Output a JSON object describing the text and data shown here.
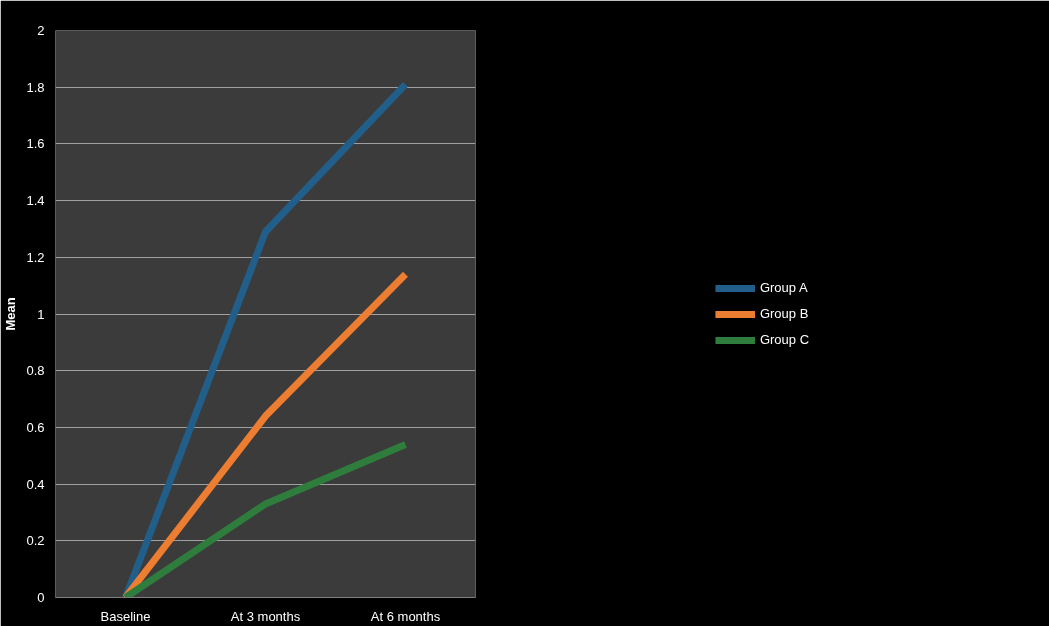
{
  "chart_data": {
    "type": "line",
    "ylabel": "Mean",
    "categories": [
      "Baseline",
      "At 3 months",
      "At 6 months"
    ],
    "series": [
      {
        "name": "Group A",
        "color": "#215f8a",
        "values": [
          0,
          1.29,
          1.81
        ]
      },
      {
        "name": "Group B",
        "color": "#ed7d31",
        "values": [
          0,
          0.64,
          1.14
        ]
      },
      {
        "name": "Group C",
        "color": "#2e7d3c",
        "values": [
          0,
          0.33,
          0.54
        ]
      }
    ],
    "ylim": [
      0,
      2
    ],
    "yticks": [
      0,
      0.2,
      0.4,
      0.6,
      0.8,
      1,
      1.2,
      1.4,
      1.6,
      1.8,
      2
    ],
    "grid": "y",
    "legend": "right",
    "marker": "none",
    "line_style": "solid"
  }
}
